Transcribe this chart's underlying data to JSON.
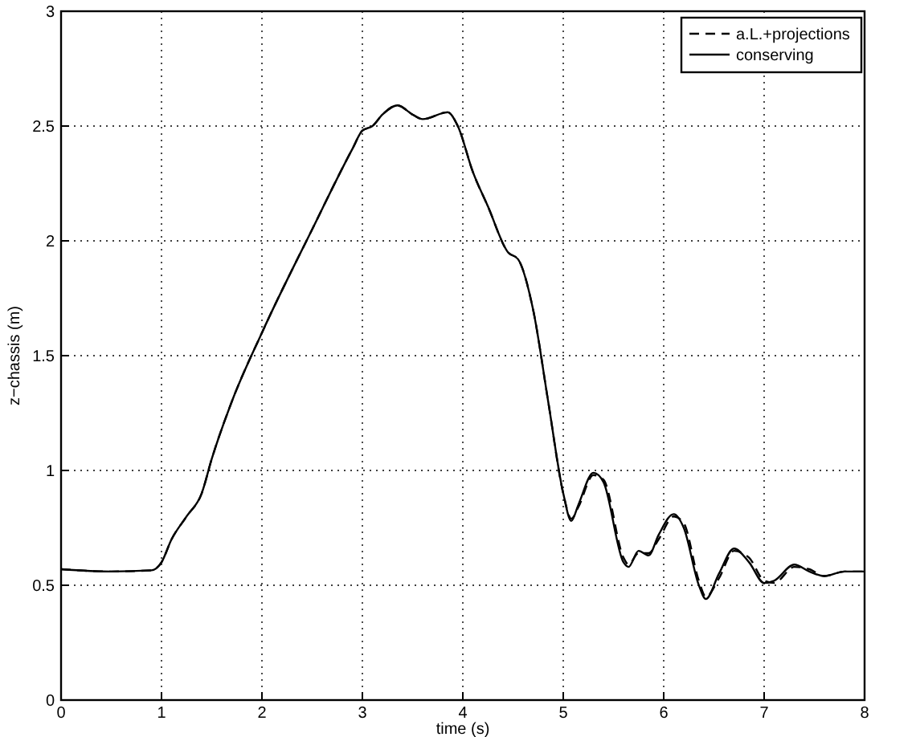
{
  "chart_data": {
    "type": "line",
    "xlabel": "time (s)",
    "ylabel": "z−chassis (m)",
    "xlim": [
      0,
      8
    ],
    "ylim": [
      0,
      3
    ],
    "xticks": [
      0,
      1,
      2,
      3,
      4,
      5,
      6,
      7,
      8
    ],
    "yticks": [
      0,
      0.5,
      1,
      1.5,
      2,
      2.5,
      3
    ],
    "grid": true,
    "legend": "top right",
    "x": [
      0,
      0.5,
      0.9,
      1.0,
      1.1,
      1.25,
      1.4,
      1.5,
      1.7,
      2.0,
      2.5,
      2.9,
      3.0,
      3.1,
      3.2,
      3.35,
      3.5,
      3.6,
      3.85,
      3.95,
      4.1,
      4.25,
      4.45,
      4.55,
      4.7,
      4.85,
      5.0,
      5.08,
      5.15,
      5.3,
      5.4,
      5.6,
      5.65,
      5.75,
      5.85,
      5.95,
      6.1,
      6.2,
      6.35,
      6.42,
      6.55,
      6.7,
      6.85,
      7.0,
      7.1,
      7.3,
      7.45,
      7.6,
      7.8,
      8.0
    ],
    "series": [
      {
        "name": "a.L.+projections",
        "color": "#000000",
        "line_style": "dashed",
        "values": [
          0.57,
          0.56,
          0.565,
          0.6,
          0.7,
          0.8,
          0.9,
          1.05,
          1.3,
          1.6,
          2.05,
          2.4,
          2.48,
          2.5,
          2.55,
          2.59,
          2.55,
          2.53,
          2.56,
          2.5,
          2.3,
          2.15,
          1.95,
          1.92,
          1.7,
          1.3,
          0.9,
          0.79,
          0.84,
          0.98,
          0.96,
          0.62,
          0.59,
          0.64,
          0.64,
          0.7,
          0.8,
          0.77,
          0.52,
          0.45,
          0.53,
          0.65,
          0.62,
          0.52,
          0.51,
          0.58,
          0.57,
          0.54,
          0.56,
          0.56
        ]
      },
      {
        "name": "conserving",
        "color": "#000000",
        "line_style": "solid",
        "values": [
          0.57,
          0.56,
          0.565,
          0.6,
          0.7,
          0.8,
          0.9,
          1.05,
          1.3,
          1.6,
          2.05,
          2.4,
          2.48,
          2.5,
          2.55,
          2.59,
          2.55,
          2.53,
          2.56,
          2.5,
          2.3,
          2.15,
          1.95,
          1.92,
          1.7,
          1.3,
          0.9,
          0.78,
          0.85,
          0.99,
          0.95,
          0.6,
          0.58,
          0.65,
          0.63,
          0.72,
          0.81,
          0.75,
          0.5,
          0.44,
          0.55,
          0.66,
          0.6,
          0.51,
          0.52,
          0.59,
          0.56,
          0.54,
          0.56,
          0.56
        ]
      }
    ]
  }
}
